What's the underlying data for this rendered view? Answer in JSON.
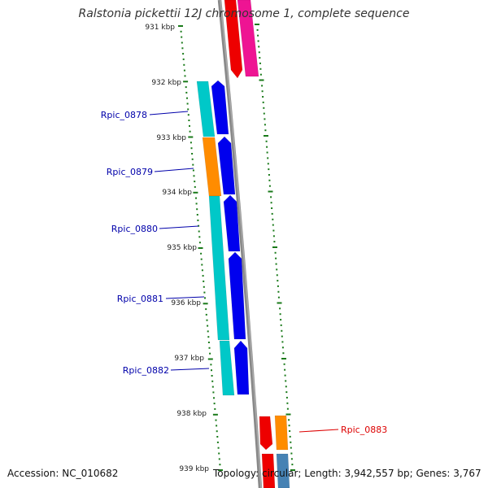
{
  "title": "Ralstonia pickettii 12J chromosome 1, complete sequence",
  "footer": {
    "accession": "Accession: NC_010682",
    "stats": "Topology: circular; Length: 3,942,557 bp; Genes: 3,767"
  },
  "ruler_labels": [
    "931 kbp",
    "932 kbp",
    "933 kbp",
    "934 kbp",
    "935 kbp",
    "936 kbp",
    "937 kbp",
    "938 kbp",
    "939 kbp"
  ],
  "gene_labels": [
    {
      "text": "Rpic_0878",
      "color": "#0000aa"
    },
    {
      "text": "Rpic_0879",
      "color": "#0000aa"
    },
    {
      "text": "Rpic_0880",
      "color": "#0000aa"
    },
    {
      "text": "Rpic_0881",
      "color": "#0000aa"
    },
    {
      "text": "Rpic_0882",
      "color": "#0000aa"
    },
    {
      "text": "Rpic_0883",
      "color": "#dd0000"
    }
  ],
  "colors": {
    "cyan": "#00c8c8",
    "orange": "#ff8c00",
    "blue": "#0000ee",
    "red": "#ee0000",
    "magenta": "#ee1493",
    "steelblue": "#4682b4",
    "ruler": "#1a7a1a",
    "backbone": "#888888"
  }
}
